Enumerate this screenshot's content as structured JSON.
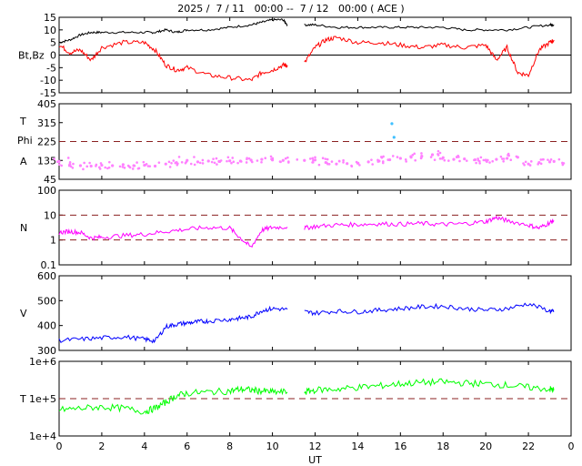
{
  "title": "2025 /  7 / 11   00:00 --  7 / 12   00:00 ( ACE )",
  "x_axis": {
    "label": "UT",
    "ticks": [
      "0",
      "2",
      "4",
      "6",
      "8",
      "10",
      "12",
      "14",
      "16",
      "18",
      "20",
      "22",
      "0"
    ]
  },
  "panels": [
    {
      "id": "mag",
      "ylabel": "Bt,Bz",
      "ticks": [
        "15",
        "10",
        "5",
        "0",
        "-5",
        "-10",
        "-15"
      ]
    },
    {
      "id": "temp-angle",
      "ylabel_parts": [
        "T",
        "Phi",
        "A"
      ],
      "ticks": [
        "405",
        "315",
        "225",
        "135",
        "45"
      ]
    },
    {
      "id": "density",
      "ylabel": "N",
      "ticks": [
        "100",
        "10",
        "1",
        "0.1"
      ]
    },
    {
      "id": "speed",
      "ylabel": "V",
      "ticks": [
        "600",
        "500",
        "400",
        "300"
      ]
    },
    {
      "id": "temperature",
      "ylabel": "T",
      "ticks": [
        "1e+6",
        "1e+5",
        "1e+4"
      ]
    }
  ],
  "colors": {
    "bt": "#000000",
    "bz": "#ff0000",
    "phi": "#ff80ff",
    "theta": "#40c0ff",
    "density": "#ff00ff",
    "speed": "#0000ff",
    "temperature": "#00ff00",
    "reference": "#8b2020"
  },
  "chart_data": [
    {
      "type": "line",
      "panel": "mag",
      "xlim": [
        0,
        24
      ],
      "ylim": [
        -15,
        15
      ],
      "reference_lines": [
        0
      ],
      "series": [
        {
          "name": "Bt",
          "x": [
            0,
            0.5,
            1,
            1.5,
            2,
            3,
            4,
            4.5,
            5,
            5.5,
            6,
            7,
            8,
            9,
            9.5,
            10,
            10.5,
            10.7,
            11.5,
            12,
            13,
            14,
            15,
            16,
            17,
            18,
            19,
            20,
            21,
            22,
            23,
            23.2
          ],
          "values": [
            5,
            6,
            8,
            9,
            9,
            9,
            9,
            9,
            10,
            9,
            10,
            10,
            11,
            12,
            13,
            14,
            14,
            12,
            12,
            12,
            11,
            11,
            11,
            11,
            11,
            11,
            10,
            10,
            10,
            11,
            12,
            12
          ]
        },
        {
          "name": "Bz",
          "x": [
            0,
            0.5,
            1,
            1.5,
            2,
            3,
            4,
            4.5,
            5,
            5.5,
            6,
            7,
            8,
            9,
            9.5,
            10,
            10.5,
            10.7,
            11.5,
            12,
            12.5,
            13,
            14,
            15,
            16,
            17,
            18,
            19,
            20,
            20.5,
            21,
            21.5,
            22,
            22.5,
            23,
            23.2
          ],
          "values": [
            4,
            1,
            2,
            -2,
            3,
            5,
            5,
            2,
            -4,
            -6,
            -5,
            -8,
            -9,
            -10,
            -7,
            -6,
            -4,
            -4,
            -3,
            3,
            6,
            7,
            5,
            5,
            4,
            3,
            4,
            3,
            4,
            -2,
            3,
            -7,
            -8,
            2,
            5,
            6
          ]
        }
      ]
    },
    {
      "type": "scatter",
      "panel": "temp-angle",
      "xlim": [
        0,
        24
      ],
      "ylim": [
        45,
        405
      ],
      "reference_lines": [
        225
      ],
      "series": [
        {
          "name": "Phi",
          "x": [
            0,
            0.5,
            1,
            1.5,
            2,
            2.5,
            3,
            3.5,
            4,
            4.5,
            5,
            5.5,
            6,
            6.5,
            7,
            7.5,
            8,
            8.5,
            9,
            9.5,
            10,
            10.5,
            11.5,
            12,
            12.5,
            13,
            13.5,
            14,
            14.5,
            15,
            15.5,
            16,
            16.5,
            17,
            17.5,
            18,
            18.5,
            19,
            19.5,
            20,
            20.5,
            21,
            21.5,
            22,
            22.5,
            23,
            23.2
          ],
          "values": [
            130,
            115,
            110,
            108,
            112,
            110,
            115,
            110,
            112,
            108,
            118,
            125,
            135,
            128,
            132,
            130,
            133,
            132,
            136,
            140,
            137,
            135,
            135,
            137,
            125,
            118,
            120,
            122,
            128,
            132,
            138,
            145,
            150,
            155,
            162,
            148,
            140,
            142,
            138,
            136,
            140,
            145,
            150,
            118,
            125,
            128,
            130
          ]
        },
        {
          "name": "Theta",
          "x": [
            15.6,
            15.7
          ],
          "values": [
            310,
            245
          ]
        }
      ]
    },
    {
      "type": "line",
      "panel": "density",
      "xlim": [
        0,
        24
      ],
      "ylim": [
        0.1,
        100
      ],
      "yscale": "log",
      "reference_lines": [
        1,
        10
      ],
      "series": [
        {
          "name": "N",
          "x": [
            0,
            0.5,
            1,
            1.5,
            2,
            3,
            4,
            5,
            6,
            7,
            8,
            8.5,
            9,
            9.5,
            10,
            10.7,
            11.5,
            12,
            13,
            14,
            15,
            16,
            17,
            18,
            19,
            20,
            20.5,
            21,
            22,
            22.5,
            23,
            23.2
          ],
          "values": [
            2,
            2.2,
            2,
            1.2,
            1.3,
            1.5,
            1.7,
            2.2,
            2.7,
            3.2,
            3,
            1.2,
            0.5,
            2.5,
            3.2,
            3.3,
            3,
            3.5,
            4,
            4.2,
            4.5,
            4.3,
            4.6,
            4.2,
            4.5,
            5.5,
            8,
            6,
            4,
            3,
            5,
            6
          ]
        }
      ]
    },
    {
      "type": "line",
      "panel": "speed",
      "xlim": [
        0,
        24
      ],
      "ylim": [
        300,
        600
      ],
      "series": [
        {
          "name": "V",
          "x": [
            0,
            1,
            2,
            3,
            4,
            4.5,
            5,
            5.5,
            6,
            6.5,
            7,
            8,
            8.5,
            9,
            9.5,
            10,
            10.7,
            11.5,
            12,
            13,
            14,
            15,
            16,
            17,
            18,
            19,
            20,
            21,
            22,
            23,
            23.2
          ],
          "values": [
            340,
            345,
            350,
            355,
            345,
            338,
            395,
            405,
            410,
            415,
            418,
            425,
            430,
            435,
            460,
            468,
            465,
            455,
            450,
            458,
            455,
            462,
            468,
            475,
            478,
            468,
            462,
            468,
            488,
            458,
            455
          ]
        }
      ]
    },
    {
      "type": "line",
      "panel": "temperature",
      "xlim": [
        0,
        24
      ],
      "ylim": [
        10000,
        1000000
      ],
      "yscale": "log",
      "reference_lines": [
        100000
      ],
      "series": [
        {
          "name": "T",
          "x": [
            0,
            1,
            2,
            3,
            4,
            4.5,
            5,
            5.5,
            6,
            7,
            8,
            8.5,
            9,
            9.5,
            10,
            10.7,
            11.5,
            12,
            13,
            14,
            15,
            16,
            17,
            18,
            19,
            20,
            21,
            22,
            23,
            23.2
          ],
          "values": [
            50000,
            55000,
            60000,
            55000,
            45000,
            55000,
            80000,
            120000,
            140000,
            150000,
            160000,
            180000,
            170000,
            160000,
            150000,
            150000,
            150000,
            170000,
            180000,
            200000,
            220000,
            250000,
            270000,
            280000,
            260000,
            250000,
            230000,
            200000,
            180000,
            170000
          ]
        }
      ]
    }
  ]
}
